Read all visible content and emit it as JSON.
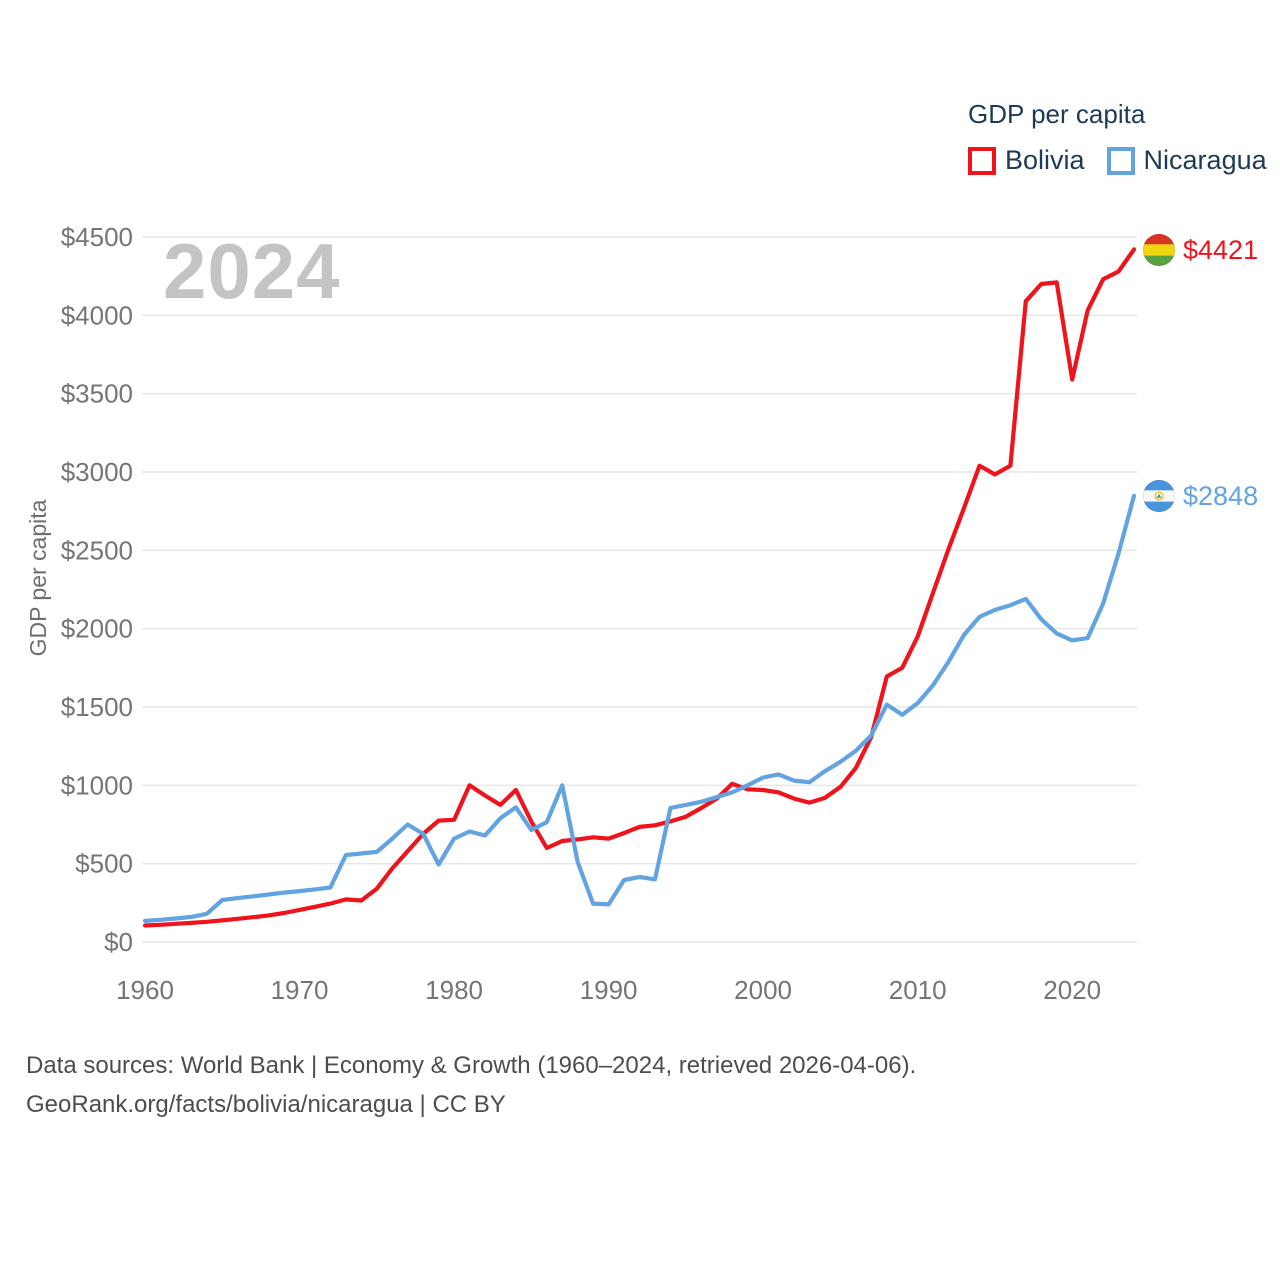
{
  "legend": {
    "title": "GDP per capita",
    "items": [
      {
        "label": "Bolivia"
      },
      {
        "label": "Nicaragua"
      }
    ]
  },
  "footer": {
    "line1": "Data sources: World Bank | Economy & Growth (1960–2024, retrieved 2026-04-06).",
    "line2": "GeoRank.org/facts/bolivia/nicaragua | CC BY"
  },
  "chart_data": {
    "type": "line",
    "watermark": "2024",
    "ylabel": "GDP per capita",
    "ylim": [
      0,
      4500
    ],
    "y_tick_step": 500,
    "y_tick_prefix": "$",
    "x_ticks": [
      1960,
      1970,
      1980,
      1990,
      2000,
      2010,
      2020
    ],
    "grid": "horizontal",
    "legend_position": "top-right",
    "years": [
      1960,
      1961,
      1962,
      1963,
      1964,
      1965,
      1966,
      1967,
      1968,
      1969,
      1970,
      1971,
      1972,
      1973,
      1974,
      1975,
      1976,
      1977,
      1978,
      1979,
      1980,
      1981,
      1982,
      1983,
      1984,
      1985,
      1986,
      1987,
      1988,
      1989,
      1990,
      1991,
      1992,
      1993,
      1994,
      1995,
      1996,
      1997,
      1998,
      1999,
      2000,
      2001,
      2002,
      2003,
      2004,
      2005,
      2006,
      2007,
      2008,
      2009,
      2010,
      2011,
      2012,
      2013,
      2014,
      2015,
      2016,
      2017,
      2018,
      2019,
      2020,
      2021,
      2022,
      2023,
      2024
    ],
    "series": [
      {
        "name": "Bolivia",
        "color": "#f0131c",
        "flag": "bolivia",
        "end_label": "$4421",
        "end_value": 4421,
        "values": [
          105,
          110,
          116,
          122,
          129,
          138,
          148,
          158,
          170,
          185,
          205,
          225,
          245,
          272,
          265,
          340,
          470,
          580,
          690,
          775,
          780,
          1000,
          935,
          875,
          970,
          770,
          600,
          645,
          655,
          668,
          660,
          695,
          735,
          745,
          770,
          800,
          855,
          915,
          1010,
          975,
          970,
          955,
          915,
          890,
          920,
          990,
          1110,
          1310,
          1695,
          1750,
          1950,
          2230,
          2510,
          2770,
          3040,
          2985,
          3040,
          4090,
          4200,
          4210,
          3590,
          4030,
          4230,
          4280,
          4421
        ]
      },
      {
        "name": "Nicaragua",
        "color": "#62a4e2",
        "flag": "nicaragua",
        "end_label": "$2848",
        "end_value": 2848,
        "values": [
          135,
          142,
          150,
          160,
          180,
          268,
          280,
          292,
          303,
          315,
          325,
          336,
          348,
          555,
          565,
          575,
          660,
          750,
          690,
          495,
          660,
          705,
          680,
          790,
          860,
          715,
          765,
          1000,
          510,
          245,
          240,
          395,
          415,
          400,
          855,
          875,
          895,
          925,
          955,
          1000,
          1050,
          1070,
          1030,
          1020,
          1090,
          1150,
          1220,
          1320,
          1515,
          1450,
          1525,
          1640,
          1790,
          1960,
          2075,
          2120,
          2150,
          2190,
          2060,
          1970,
          1925,
          1940,
          2160,
          2480,
          2848
        ]
      }
    ]
  }
}
